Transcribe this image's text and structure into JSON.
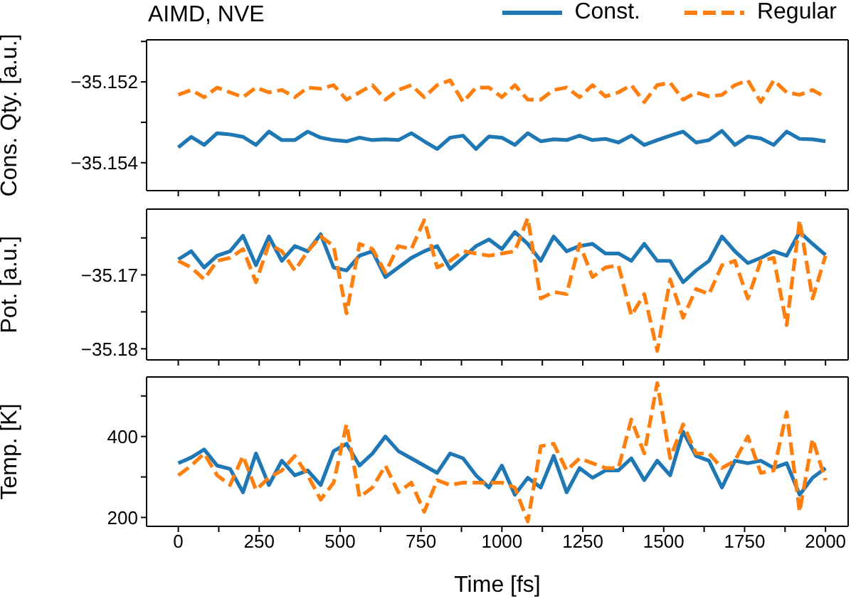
{
  "chart_data": [
    {
      "type": "line",
      "title": "AIMD, NVE",
      "ylabel": "Cons. Qty. [a.u.]",
      "legend": "top right",
      "marker": "none",
      "tick_labels": "y",
      "x": [
        0,
        40,
        80,
        120,
        160,
        200,
        240,
        280,
        320,
        360,
        400,
        440,
        480,
        520,
        560,
        600,
        640,
        680,
        720,
        760,
        800,
        840,
        880,
        920,
        960,
        1000,
        1040,
        1080,
        1120,
        1160,
        1200,
        1240,
        1280,
        1320,
        1360,
        1400,
        1440,
        1480,
        1520,
        1560,
        1600,
        1640,
        1680,
        1720,
        1760,
        1800,
        1840,
        1880,
        1920,
        1960,
        2000
      ],
      "xlim": [
        -98,
        2070
      ],
      "xticks": [
        0,
        {
          "value": 125,
          "label": null
        },
        250,
        {
          "value": 375,
          "label": null
        },
        500,
        {
          "value": 625,
          "label": null
        },
        750,
        {
          "value": 875,
          "label": null
        },
        1000,
        {
          "value": 1125,
          "label": null
        },
        1250,
        {
          "value": 1375,
          "label": null
        },
        1500,
        {
          "value": 1625,
          "label": null
        },
        1750,
        {
          "value": 1875,
          "label": null
        },
        2000
      ],
      "ylim": [
        -35.15469,
        -35.15096
      ],
      "yticks": [
        {
          "value": -35.151,
          "label": null
        },
        {
          "value": -35.152,
          "label": "−35.152"
        },
        {
          "value": -35.153,
          "label": null
        },
        {
          "value": -35.154,
          "label": "−35.154"
        }
      ],
      "series": [
        {
          "name": "Const.",
          "color": "#1f77b4",
          "line_style": "solid",
          "values": [
            -35.15362,
            -35.15336,
            -35.15356,
            -35.15327,
            -35.1533,
            -35.15336,
            -35.15356,
            -35.15323,
            -35.15344,
            -35.15344,
            -35.15323,
            -35.15338,
            -35.15344,
            -35.15347,
            -35.15338,
            -35.15344,
            -35.15342,
            -35.15344,
            -35.15327,
            -35.15347,
            -35.15366,
            -35.15338,
            -35.15333,
            -35.15366,
            -35.15335,
            -35.15338,
            -35.15356,
            -35.15327,
            -35.15347,
            -35.15342,
            -35.15344,
            -35.15333,
            -35.15344,
            -35.15341,
            -35.1535,
            -35.15333,
            -35.15356,
            -35.15344,
            -35.15333,
            -35.15323,
            -35.1535,
            -35.15344,
            -35.15321,
            -35.15356,
            -35.15335,
            -35.1534,
            -35.15356,
            -35.15323,
            -35.15341,
            -35.15342,
            -35.15347
          ]
        },
        {
          "name": "Regular",
          "color": "#ff7f0e",
          "line_style": "dashed",
          "values": [
            -35.15232,
            -35.1522,
            -35.15238,
            -35.15214,
            -35.15226,
            -35.15238,
            -35.15214,
            -35.15226,
            -35.1522,
            -35.15238,
            -35.15214,
            -35.15217,
            -35.15208,
            -35.15244,
            -35.15226,
            -35.15208,
            -35.15244,
            -35.1522,
            -35.15208,
            -35.15238,
            -35.15208,
            -35.15196,
            -35.1525,
            -35.15214,
            -35.15214,
            -35.15238,
            -35.15208,
            -35.15244,
            -35.15244,
            -35.1522,
            -35.15214,
            -35.15238,
            -35.15208,
            -35.15236,
            -35.15226,
            -35.15208,
            -35.1525,
            -35.15208,
            -35.15202,
            -35.15244,
            -35.15226,
            -35.15236,
            -35.15232,
            -35.15208,
            -35.15196,
            -35.1525,
            -35.15196,
            -35.15226,
            -35.15232,
            -35.1522,
            -35.15238
          ]
        }
      ]
    },
    {
      "type": "line",
      "ylabel": "Pot. [a.u.]",
      "marker": "none",
      "tick_labels": "y",
      "x": [
        0,
        40,
        80,
        120,
        160,
        200,
        240,
        280,
        320,
        360,
        400,
        440,
        480,
        520,
        560,
        600,
        640,
        680,
        720,
        760,
        800,
        840,
        880,
        920,
        960,
        1000,
        1040,
        1080,
        1120,
        1160,
        1200,
        1240,
        1280,
        1320,
        1360,
        1400,
        1440,
        1480,
        1520,
        1560,
        1600,
        1640,
        1680,
        1720,
        1760,
        1800,
        1840,
        1880,
        1920,
        1960,
        2000
      ],
      "xlim": [
        -98,
        2070
      ],
      "xticks": [
        0,
        {
          "value": 125,
          "label": null
        },
        250,
        {
          "value": 375,
          "label": null
        },
        500,
        {
          "value": 625,
          "label": null
        },
        750,
        {
          "value": 875,
          "label": null
        },
        1000,
        {
          "value": 1125,
          "label": null
        },
        1250,
        {
          "value": 1375,
          "label": null
        },
        1500,
        {
          "value": 1625,
          "label": null
        },
        1750,
        {
          "value": 1875,
          "label": null
        },
        2000
      ],
      "ylim": [
        -35.1815,
        -35.1611
      ],
      "yticks": [
        {
          "value": -35.165,
          "label": null
        },
        {
          "value": -35.17,
          "label": "−35.17"
        },
        {
          "value": -35.175,
          "label": null
        },
        {
          "value": -35.18,
          "label": "−35.18"
        }
      ],
      "series": [
        {
          "color": "#1f77b4",
          "line_style": "solid",
          "values": [
            -35.1679,
            -35.1668,
            -35.169,
            -35.1674,
            -35.1668,
            -35.1647,
            -35.1687,
            -35.1648,
            -35.1681,
            -35.1661,
            -35.1668,
            -35.1645,
            -35.169,
            -35.1694,
            -35.1674,
            -35.1668,
            -35.1703,
            -35.169,
            -35.1677,
            -35.1668,
            -35.1661,
            -35.1692,
            -35.1677,
            -35.1661,
            -35.1652,
            -35.1665,
            -35.1642,
            -35.1658,
            -35.1681,
            -35.1648,
            -35.1668,
            -35.1661,
            -35.1658,
            -35.1671,
            -35.1671,
            -35.1681,
            -35.1658,
            -35.1681,
            -35.1681,
            -35.171,
            -35.1694,
            -35.1681,
            -35.1648,
            -35.1668,
            -35.1684,
            -35.1677,
            -35.1668,
            -35.1674,
            -35.1642,
            -35.1658,
            -35.1673
          ]
        },
        {
          "color": "#ff7f0e",
          "line_style": "dashed",
          "values": [
            -35.1681,
            -35.169,
            -35.1706,
            -35.1681,
            -35.1677,
            -35.1665,
            -35.171,
            -35.1658,
            -35.1668,
            -35.1694,
            -35.1668,
            -35.1648,
            -35.1661,
            -35.1752,
            -35.1658,
            -35.1665,
            -35.1697,
            -35.1661,
            -35.1665,
            -35.1626,
            -35.169,
            -35.1681,
            -35.1668,
            -35.1671,
            -35.1674,
            -35.1671,
            -35.1668,
            -35.1623,
            -35.1732,
            -35.1723,
            -35.1726,
            -35.1658,
            -35.1703,
            -35.169,
            -35.1687,
            -35.1755,
            -35.1726,
            -35.1803,
            -35.1706,
            -35.1758,
            -35.1719,
            -35.1726,
            -35.1687,
            -35.1681,
            -35.1732,
            -35.1681,
            -35.1677,
            -35.1768,
            -35.1626,
            -35.1732,
            -35.1674
          ]
        }
      ]
    },
    {
      "type": "line",
      "xlabel": "Time [fs]",
      "ylabel": "Temp. [K]",
      "marker": "none",
      "x": [
        0,
        40,
        80,
        120,
        160,
        200,
        240,
        280,
        320,
        360,
        400,
        440,
        480,
        520,
        560,
        600,
        640,
        680,
        720,
        760,
        800,
        840,
        880,
        920,
        960,
        1000,
        1040,
        1080,
        1120,
        1160,
        1200,
        1240,
        1280,
        1320,
        1360,
        1400,
        1440,
        1480,
        1520,
        1560,
        1600,
        1640,
        1680,
        1720,
        1760,
        1800,
        1840,
        1880,
        1920,
        1960,
        2000
      ],
      "xlim": [
        -98,
        2070
      ],
      "xticks": [
        0,
        {
          "value": 125,
          "label": null
        },
        250,
        {
          "value": 375,
          "label": null
        },
        500,
        {
          "value": 625,
          "label": null
        },
        750,
        {
          "value": 875,
          "label": null
        },
        1000,
        {
          "value": 1125,
          "label": null
        },
        1250,
        {
          "value": 1375,
          "label": null
        },
        1500,
        {
          "value": 1625,
          "label": null
        },
        1750,
        {
          "value": 1875,
          "label": null
        },
        2000
      ],
      "ylim": [
        178,
        547
      ],
      "yticks": [
        {
          "value": 500,
          "label": null
        },
        400,
        {
          "value": 300,
          "label": null
        },
        200
      ],
      "series": [
        {
          "color": "#1f77b4",
          "line_style": "solid",
          "values": [
            334,
            348,
            368,
            328,
            320,
            262,
            358,
            280,
            340,
            304,
            316,
            280,
            364,
            382,
            328,
            358,
            400,
            364,
            346,
            328,
            310,
            358,
            346,
            304,
            274,
            328,
            256,
            298,
            274,
            352,
            262,
            322,
            298,
            316,
            316,
            346,
            292,
            340,
            304,
            412,
            352,
            340,
            274,
            340,
            334,
            340,
            322,
            334,
            256,
            298,
            322
          ]
        },
        {
          "color": "#ff7f0e",
          "line_style": "dashed",
          "values": [
            304,
            328,
            358,
            304,
            280,
            352,
            268,
            298,
            316,
            352,
            304,
            244,
            286,
            430,
            250,
            274,
            328,
            262,
            286,
            214,
            292,
            280,
            286,
            286,
            286,
            286,
            274,
            190,
            376,
            382,
            316,
            346,
            334,
            322,
            322,
            442,
            358,
            532,
            346,
            430,
            358,
            358,
            322,
            340,
            400,
            310,
            316,
            460,
            214,
            394,
            292
          ]
        }
      ]
    }
  ]
}
